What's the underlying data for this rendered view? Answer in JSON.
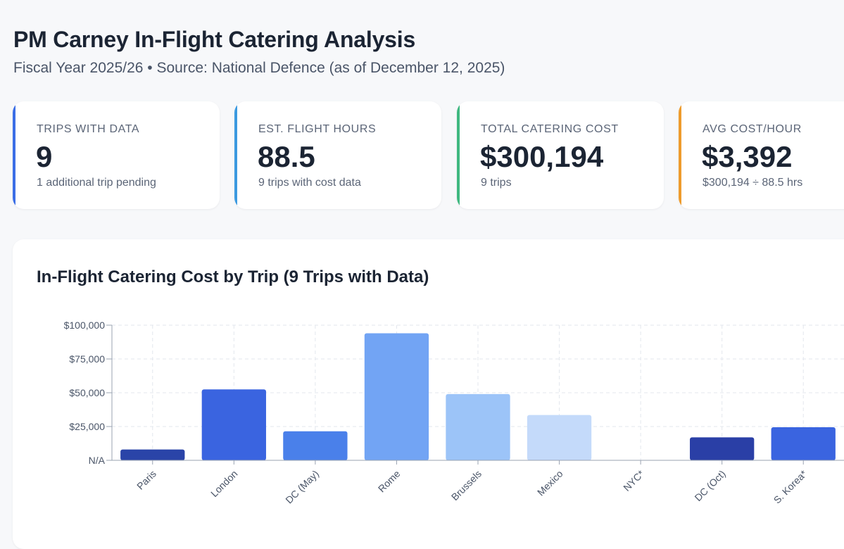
{
  "header": {
    "title": "PM Carney In-Flight Catering Analysis",
    "subtitle": "Fiscal Year 2025/26 • Source: National Defence (as of December 12, 2025)"
  },
  "cards": [
    {
      "label": "TRIPS WITH DATA",
      "value": "9",
      "note": "1 additional trip pending",
      "color": "#3b6ee6"
    },
    {
      "label": "EST. FLIGHT HOURS",
      "value": "88.5",
      "note": "9 trips with cost data",
      "color": "#3b9ae0"
    },
    {
      "label": "TOTAL CATERING COST",
      "value": "$300,194",
      "note": "9 trips",
      "color": "#3fb880"
    },
    {
      "label": "AVG COST/HOUR",
      "value": "$3,392",
      "note": "$300,194 ÷ 88.5 hrs",
      "color": "#ee9b2c"
    }
  ],
  "chart_data": {
    "type": "bar",
    "title": "In-Flight Catering Cost by Trip (9 Trips with Data)",
    "categories": [
      "Paris",
      "London",
      "DC (May)",
      "Rome",
      "Brussels",
      "Mexico",
      "NYC*",
      "DC (Oct)",
      "S. Korea*"
    ],
    "values": [
      8000,
      52500,
      21500,
      94000,
      49000,
      33500,
      0,
      17000,
      24500
    ],
    "colors": [
      "#2a44a8",
      "#3a64e0",
      "#4a80ea",
      "#72a4f4",
      "#9cc4f8",
      "#c4dafa",
      "#c4dafa",
      "#2a3fa6",
      "#3a64e0"
    ],
    "ylim": [
      0,
      100000
    ],
    "yticks": [
      {
        "value": 0,
        "label": "N/A"
      },
      {
        "value": 25000,
        "label": "$25,000"
      },
      {
        "value": 50000,
        "label": "$50,000"
      },
      {
        "value": 75000,
        "label": "$75,000"
      },
      {
        "value": 100000,
        "label": "$100,000"
      }
    ],
    "grid": true,
    "xlabel": "",
    "ylabel": ""
  }
}
